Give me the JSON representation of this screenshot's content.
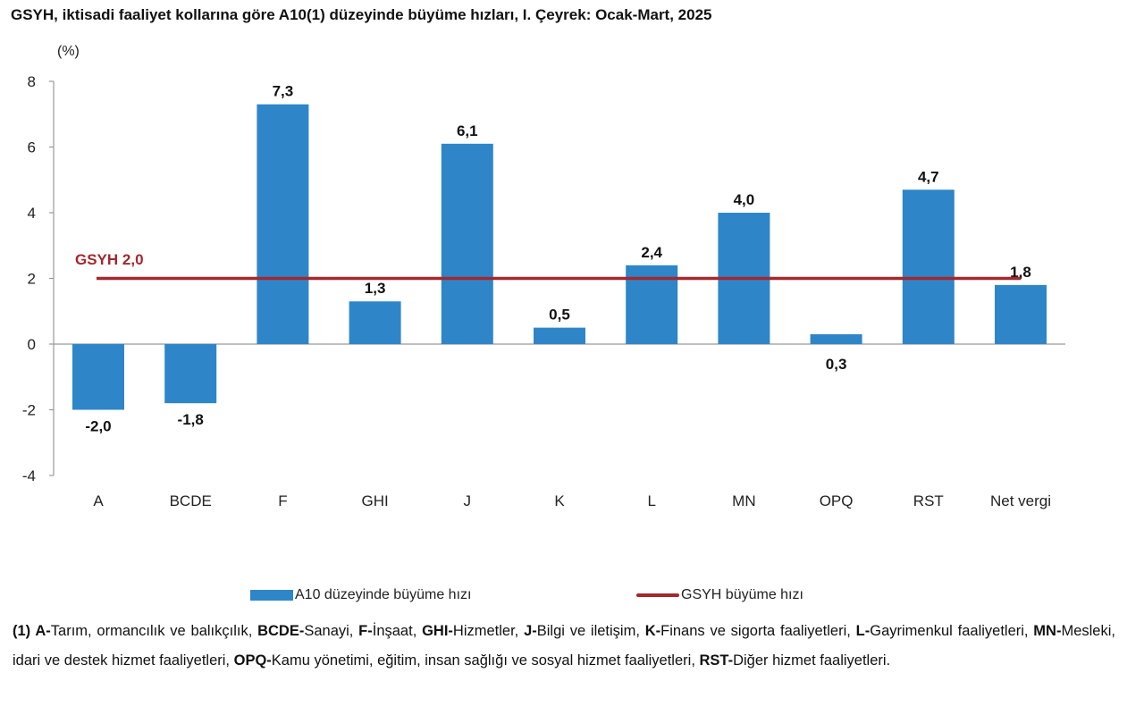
{
  "chart_data": {
    "type": "bar",
    "title": "GSYH, iktisadi faaliyet kollarına göre A10(1) düzeyinde büyüme hızları, I. Çeyrek: Ocak-Mart, 2025",
    "ylabel": "(%)",
    "ylim": [
      -4,
      8
    ],
    "yticks": [
      "-4",
      "-2",
      "0",
      "2",
      "4",
      "6",
      "8"
    ],
    "grid": false,
    "legend_position": "bottom",
    "categories": [
      "A",
      "BCDE",
      "F",
      "GHI",
      "J",
      "K",
      "L",
      "MN",
      "OPQ",
      "RST",
      "Net vergi"
    ],
    "series": [
      {
        "name": "A10 düzeyinde büyüme hızı",
        "color": "#2E86C9",
        "values": [
          -2.0,
          -1.8,
          7.3,
          1.3,
          6.1,
          0.5,
          2.4,
          4.0,
          0.3,
          4.7,
          1.8
        ],
        "labels": [
          "-2,0",
          "-1,8",
          "7,3",
          "1,3",
          "6,1",
          "0,5",
          "2,4",
          "4,0",
          "0,3",
          "4,7",
          "1,8"
        ]
      },
      {
        "name": "GSYH büyüme hızı",
        "type": "line",
        "color": "#A3282E",
        "value": 2.0,
        "annotation": "GSYH 2,0"
      }
    ]
  },
  "footnote": [
    {
      "t": "(1) ",
      "b": true
    },
    {
      "t": "A-",
      "b": true
    },
    {
      "t": "Tarım, ormancılık ve balıkçılık, "
    },
    {
      "t": "BCDE-",
      "b": true
    },
    {
      "t": "Sanayi, "
    },
    {
      "t": "F-",
      "b": true
    },
    {
      "t": "İnşaat, "
    },
    {
      "t": "GHI-",
      "b": true
    },
    {
      "t": "Hizmetler, "
    },
    {
      "t": "J-",
      "b": true
    },
    {
      "t": "Bilgi ve iletişim, "
    },
    {
      "t": "K-",
      "b": true
    },
    {
      "t": "Finans ve sigorta faaliyetleri, "
    },
    {
      "t": "L-",
      "b": true
    },
    {
      "t": "Gayrimenkul faaliyetleri, "
    },
    {
      "t": "MN-",
      "b": true
    },
    {
      "t": "Mesleki, idari ve destek hizmet faaliyetleri, "
    },
    {
      "t": "OPQ-",
      "b": true
    },
    {
      "t": "Kamu yönetimi, eğitim, insan sağlığı ve sosyal hizmet faaliyetleri, "
    },
    {
      "t": "RST-",
      "b": true
    },
    {
      "t": "Diğer hizmet faaliyetleri."
    }
  ]
}
